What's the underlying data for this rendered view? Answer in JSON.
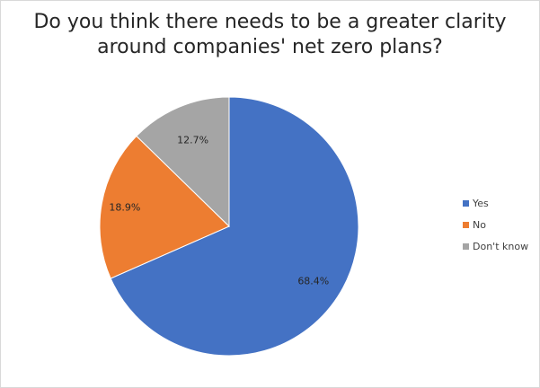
{
  "chart_data": {
    "type": "pie",
    "title_lines": [
      "Do you think there needs to be a greater clarity",
      "around companies' net zero plans?"
    ],
    "categories": [
      "Yes",
      "No",
      "Don't know"
    ],
    "values": [
      68.4,
      18.9,
      12.7
    ],
    "data_labels": [
      "68.4%",
      "18.9%",
      "12.7%"
    ],
    "colors": [
      "#4472C4",
      "#ED7D31",
      "#A5A5A5"
    ],
    "start_angle_deg": 0,
    "direction": "clockwise",
    "legend_position": "right"
  }
}
